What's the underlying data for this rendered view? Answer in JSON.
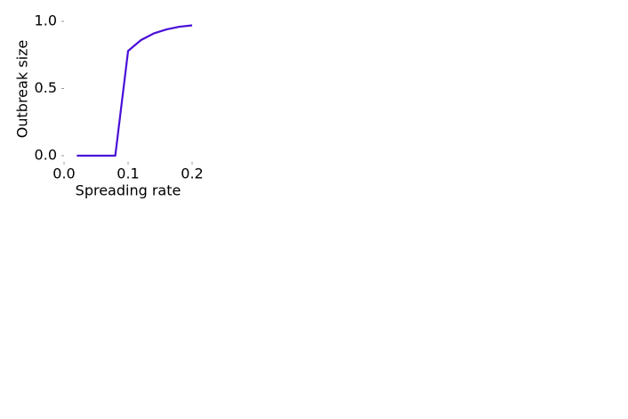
{
  "chart_data": {
    "type": "line",
    "xlabel": "Spreading rate",
    "ylabel": "Outbreak size",
    "x": [
      0.02,
      0.04,
      0.06,
      0.08,
      0.1,
      0.12,
      0.14,
      0.16,
      0.18,
      0.2
    ],
    "values": [
      0,
      0,
      0,
      0,
      0.78,
      0.86,
      0.91,
      0.94,
      0.96,
      0.97
    ],
    "color": "#4a0fd8",
    "xlim": [
      0,
      0.2
    ],
    "ylim": [
      0,
      1
    ],
    "xticks": [
      {
        "value": 0,
        "label": "0.0"
      },
      0.1,
      0.2
    ],
    "yticks": [
      {
        "value": 0,
        "label": "0.0"
      },
      0.5,
      {
        "value": 1,
        "label": "1.0"
      }
    ],
    "grid": false
  }
}
